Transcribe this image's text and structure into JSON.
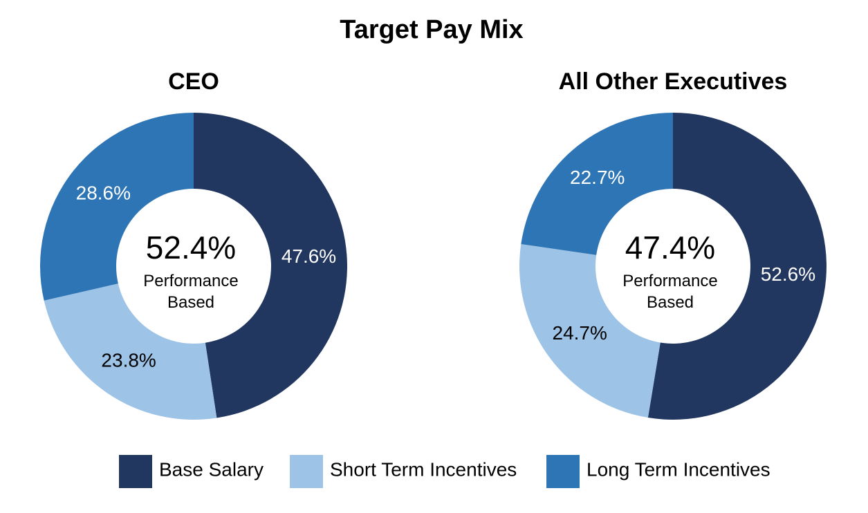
{
  "title": "Target Pay Mix",
  "chart_data": [
    {
      "type": "donut",
      "title": "CEO",
      "categories": [
        "Base Salary",
        "Short Term Incentives",
        "Long Term Incentives"
      ],
      "colors": [
        "#22375f",
        "#9dc3e6",
        "#2e75b6"
      ],
      "values": [
        47.6,
        23.8,
        28.6
      ],
      "value_labels": [
        "47.6%",
        "23.8%",
        "28.6%"
      ],
      "center": {
        "value": 52.4,
        "label": "52.4%",
        "text": "Performance Based"
      }
    },
    {
      "type": "donut",
      "title": "All Other Executives",
      "categories": [
        "Base Salary",
        "Short Term Incentives",
        "Long Term Incentives"
      ],
      "colors": [
        "#22375f",
        "#9dc3e6",
        "#2e75b6"
      ],
      "values": [
        52.6,
        24.7,
        22.7
      ],
      "value_labels": [
        "52.6%",
        "24.7%",
        "22.7%"
      ],
      "center": {
        "value": 47.4,
        "label": "47.4%",
        "text": "Performance Based"
      }
    }
  ]
}
